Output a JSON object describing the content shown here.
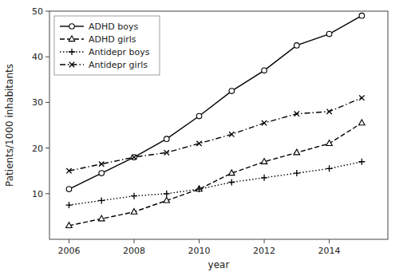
{
  "chart_data": {
    "type": "line",
    "xlabel": "year",
    "ylabel": "Patients/1000 inhabitants",
    "x": [
      2006,
      2007,
      2008,
      2009,
      2010,
      2011,
      2012,
      2013,
      2014,
      2015
    ],
    "series": [
      {
        "name": "ADHD boys",
        "color": "black",
        "marker": "circle",
        "line_style": "solid",
        "values": [
          11.0,
          14.5,
          18.0,
          22.0,
          27.0,
          32.5,
          37.0,
          42.5,
          45.0,
          49.0
        ]
      },
      {
        "name": "ADHD girls",
        "color": "black",
        "marker": "triangle",
        "line_style": "dashed",
        "values": [
          3.0,
          4.5,
          6.0,
          8.5,
          11.0,
          14.5,
          17.0,
          19.0,
          21.0,
          25.5
        ]
      },
      {
        "name": "Antidepr boys",
        "color": "black",
        "marker": "plus",
        "line_style": "dotted",
        "values": [
          7.5,
          8.5,
          9.5,
          10.0,
          11.0,
          12.5,
          13.5,
          14.5,
          15.5,
          17.0
        ]
      },
      {
        "name": "Antidepr girls",
        "color": "black",
        "marker": "x",
        "line_style": "dashdot",
        "values": [
          15.0,
          16.5,
          18.0,
          19.0,
          21.0,
          23.0,
          25.5,
          27.5,
          28.0,
          31.0
        ]
      }
    ],
    "xlim": [
      2005.4,
      2015.8
    ],
    "xticks": [
      2006,
      2008,
      2010,
      2012,
      2014
    ],
    "ylim": [
      0,
      50
    ],
    "yticks": [
      10,
      20,
      30,
      40,
      50
    ],
    "grid": false,
    "legend": "upper-left"
  }
}
